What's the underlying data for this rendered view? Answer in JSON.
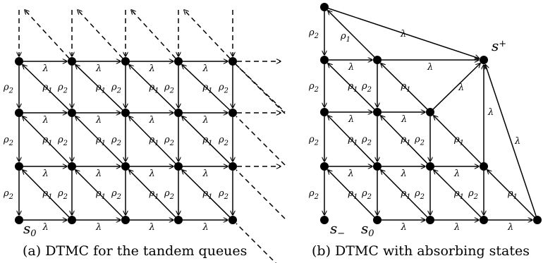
{
  "panel_a": {
    "caption": "(a) DTMC for the tandem queues",
    "labels": {
      "rho1": "ρ",
      "rho1_sub": "1",
      "rho2": "ρ",
      "rho2_sub": "2",
      "lambda": "λ"
    },
    "start_state": {
      "base": "s",
      "sub": "0"
    }
  },
  "panel_b": {
    "caption": "(b) DTMC with absorbing states",
    "labels": {
      "rho1": "ρ",
      "rho1_sub": "1",
      "rho2": "ρ",
      "rho2_sub": "2",
      "lambda": "λ"
    },
    "start_state": {
      "base": "s",
      "sub": "0"
    },
    "absorbing_plus": {
      "base": "s",
      "sub": "+"
    },
    "absorbing_minus": {
      "base": "s",
      "sub": "−"
    }
  }
}
